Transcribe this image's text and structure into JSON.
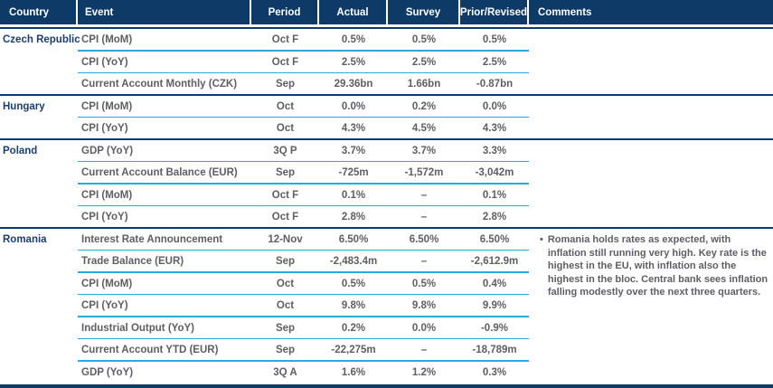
{
  "colors": {
    "navy": "#0d3a66",
    "cyan": "#29abe2",
    "country": "#1d3e6d",
    "graytext": "#5e5e64"
  },
  "bullet": "•",
  "header": {
    "columns": [
      "Country",
      "Event",
      "Period",
      "Actual",
      "Survey",
      "Prior/Revised",
      "Comments"
    ]
  },
  "groups": [
    {
      "country": "Czech Republic",
      "rows": [
        {
          "event": "CPI (MoM)",
          "period": "Oct F",
          "actual": "0.5%",
          "survey": "0.5%",
          "prior": "0.5%"
        },
        {
          "event": "CPI (YoY)",
          "period": "Oct F",
          "actual": "2.5%",
          "survey": "2.5%",
          "prior": "2.5%"
        },
        {
          "event": "Current Account Monthly (CZK)",
          "period": "Sep",
          "actual": "29.36bn",
          "survey": "1.66bn",
          "prior": "-0.87bn"
        }
      ]
    },
    {
      "country": "Hungary",
      "rows": [
        {
          "event": "CPI (MoM)",
          "period": "Oct",
          "actual": "0.0%",
          "survey": "0.2%",
          "prior": "0.0%"
        },
        {
          "event": "CPI (YoY)",
          "period": "Oct",
          "actual": "4.3%",
          "survey": "4.5%",
          "prior": "4.3%"
        }
      ]
    },
    {
      "country": "Poland",
      "rows": [
        {
          "event": "GDP (YoY)",
          "period": "3Q P",
          "actual": "3.7%",
          "survey": "3.7%",
          "prior": "3.3%"
        },
        {
          "event": "Current Account Balance (EUR)",
          "period": "Sep",
          "actual": "-725m",
          "survey": "-1,572m",
          "prior": "-3,042m"
        },
        {
          "event": "CPI (MoM)",
          "period": "Oct F",
          "actual": "0.1%",
          "survey": "–",
          "prior": "0.1%"
        },
        {
          "event": "CPI (YoY)",
          "period": "Oct F",
          "actual": "2.8%",
          "survey": "–",
          "prior": "2.8%"
        }
      ]
    },
    {
      "country": "Romania",
      "rows": [
        {
          "event": "Interest Rate Announcement",
          "period": "12-Nov",
          "actual": "6.50%",
          "survey": "6.50%",
          "prior": "6.50%"
        },
        {
          "event": "Trade Balance (EUR)",
          "period": "Sep",
          "actual": "-2,483.4m",
          "survey": "–",
          "prior": "-2,612.9m"
        },
        {
          "event": "CPI (MoM)",
          "period": "Oct",
          "actual": "0.5%",
          "survey": "0.5%",
          "prior": "0.4%"
        },
        {
          "event": "CPI (YoY)",
          "period": "Oct",
          "actual": "9.8%",
          "survey": "9.8%",
          "prior": "9.9%"
        },
        {
          "event": "Industrial Output (YoY)",
          "period": "Sep",
          "actual": "0.2%",
          "survey": "0.0%",
          "prior": "-0.9%"
        },
        {
          "event": "Current Account YTD (EUR)",
          "period": "Sep",
          "actual": "-22,275m",
          "survey": "–",
          "prior": "-18,789m"
        },
        {
          "event": "GDP (YoY)",
          "period": "3Q A",
          "actual": "1.6%",
          "survey": "1.2%",
          "prior": "0.3%"
        }
      ],
      "comment": "Romania holds rates as expected, with inflation still running very high. Key rate is the highest in the EU, with inflation also the highest in the bloc. Central bank sees inflation falling modestly over the next three quarters."
    }
  ]
}
